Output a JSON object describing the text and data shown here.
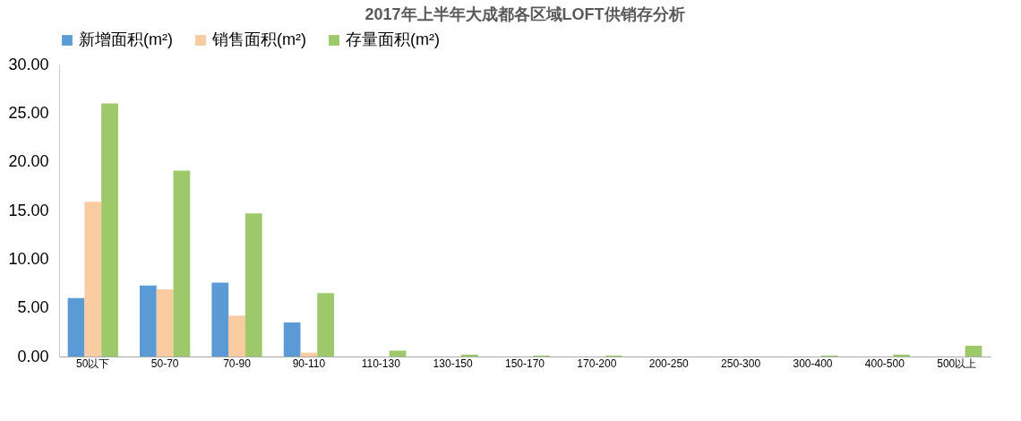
{
  "chart_data": {
    "type": "bar",
    "title": "2017年上半年大成都各区域LOFT供销存分析",
    "categories": [
      "50以下",
      "50-70",
      "70-90",
      "90-110",
      "110-130",
      "130-150",
      "150-170",
      "170-200",
      "200-250",
      "250-300",
      "300-400",
      "400-500",
      "500以上"
    ],
    "series": [
      {
        "name": "新增面积(m²)",
        "color": "#5b9bd5",
        "values": [
          6.0,
          7.3,
          7.6,
          3.5,
          0,
          0,
          0,
          0,
          0,
          0,
          0,
          0,
          0
        ]
      },
      {
        "name": "销售面积(m²)",
        "color": "#f8cba1",
        "values": [
          15.9,
          6.9,
          4.2,
          0.4,
          0,
          0,
          0,
          0,
          0,
          0,
          0,
          0,
          0
        ]
      },
      {
        "name": "存量面积(m²)",
        "color": "#9dc96a",
        "values": [
          26.0,
          19.1,
          14.7,
          6.5,
          0.6,
          0.2,
          0.1,
          0.1,
          0,
          0,
          0.1,
          0.2,
          1.1
        ]
      }
    ],
    "ylim": [
      0,
      30
    ],
    "yticks": [
      {
        "value": 0,
        "label": "0.00"
      },
      {
        "value": 5,
        "label": "5.00"
      },
      {
        "value": 10,
        "label": "10.00"
      },
      {
        "value": 15,
        "label": "15.00"
      },
      {
        "value": 20,
        "label": "20.00"
      },
      {
        "value": 25,
        "label": "25.00"
      },
      {
        "value": 30,
        "label": "30.00"
      }
    ],
    "legend": "top",
    "grid": false
  }
}
